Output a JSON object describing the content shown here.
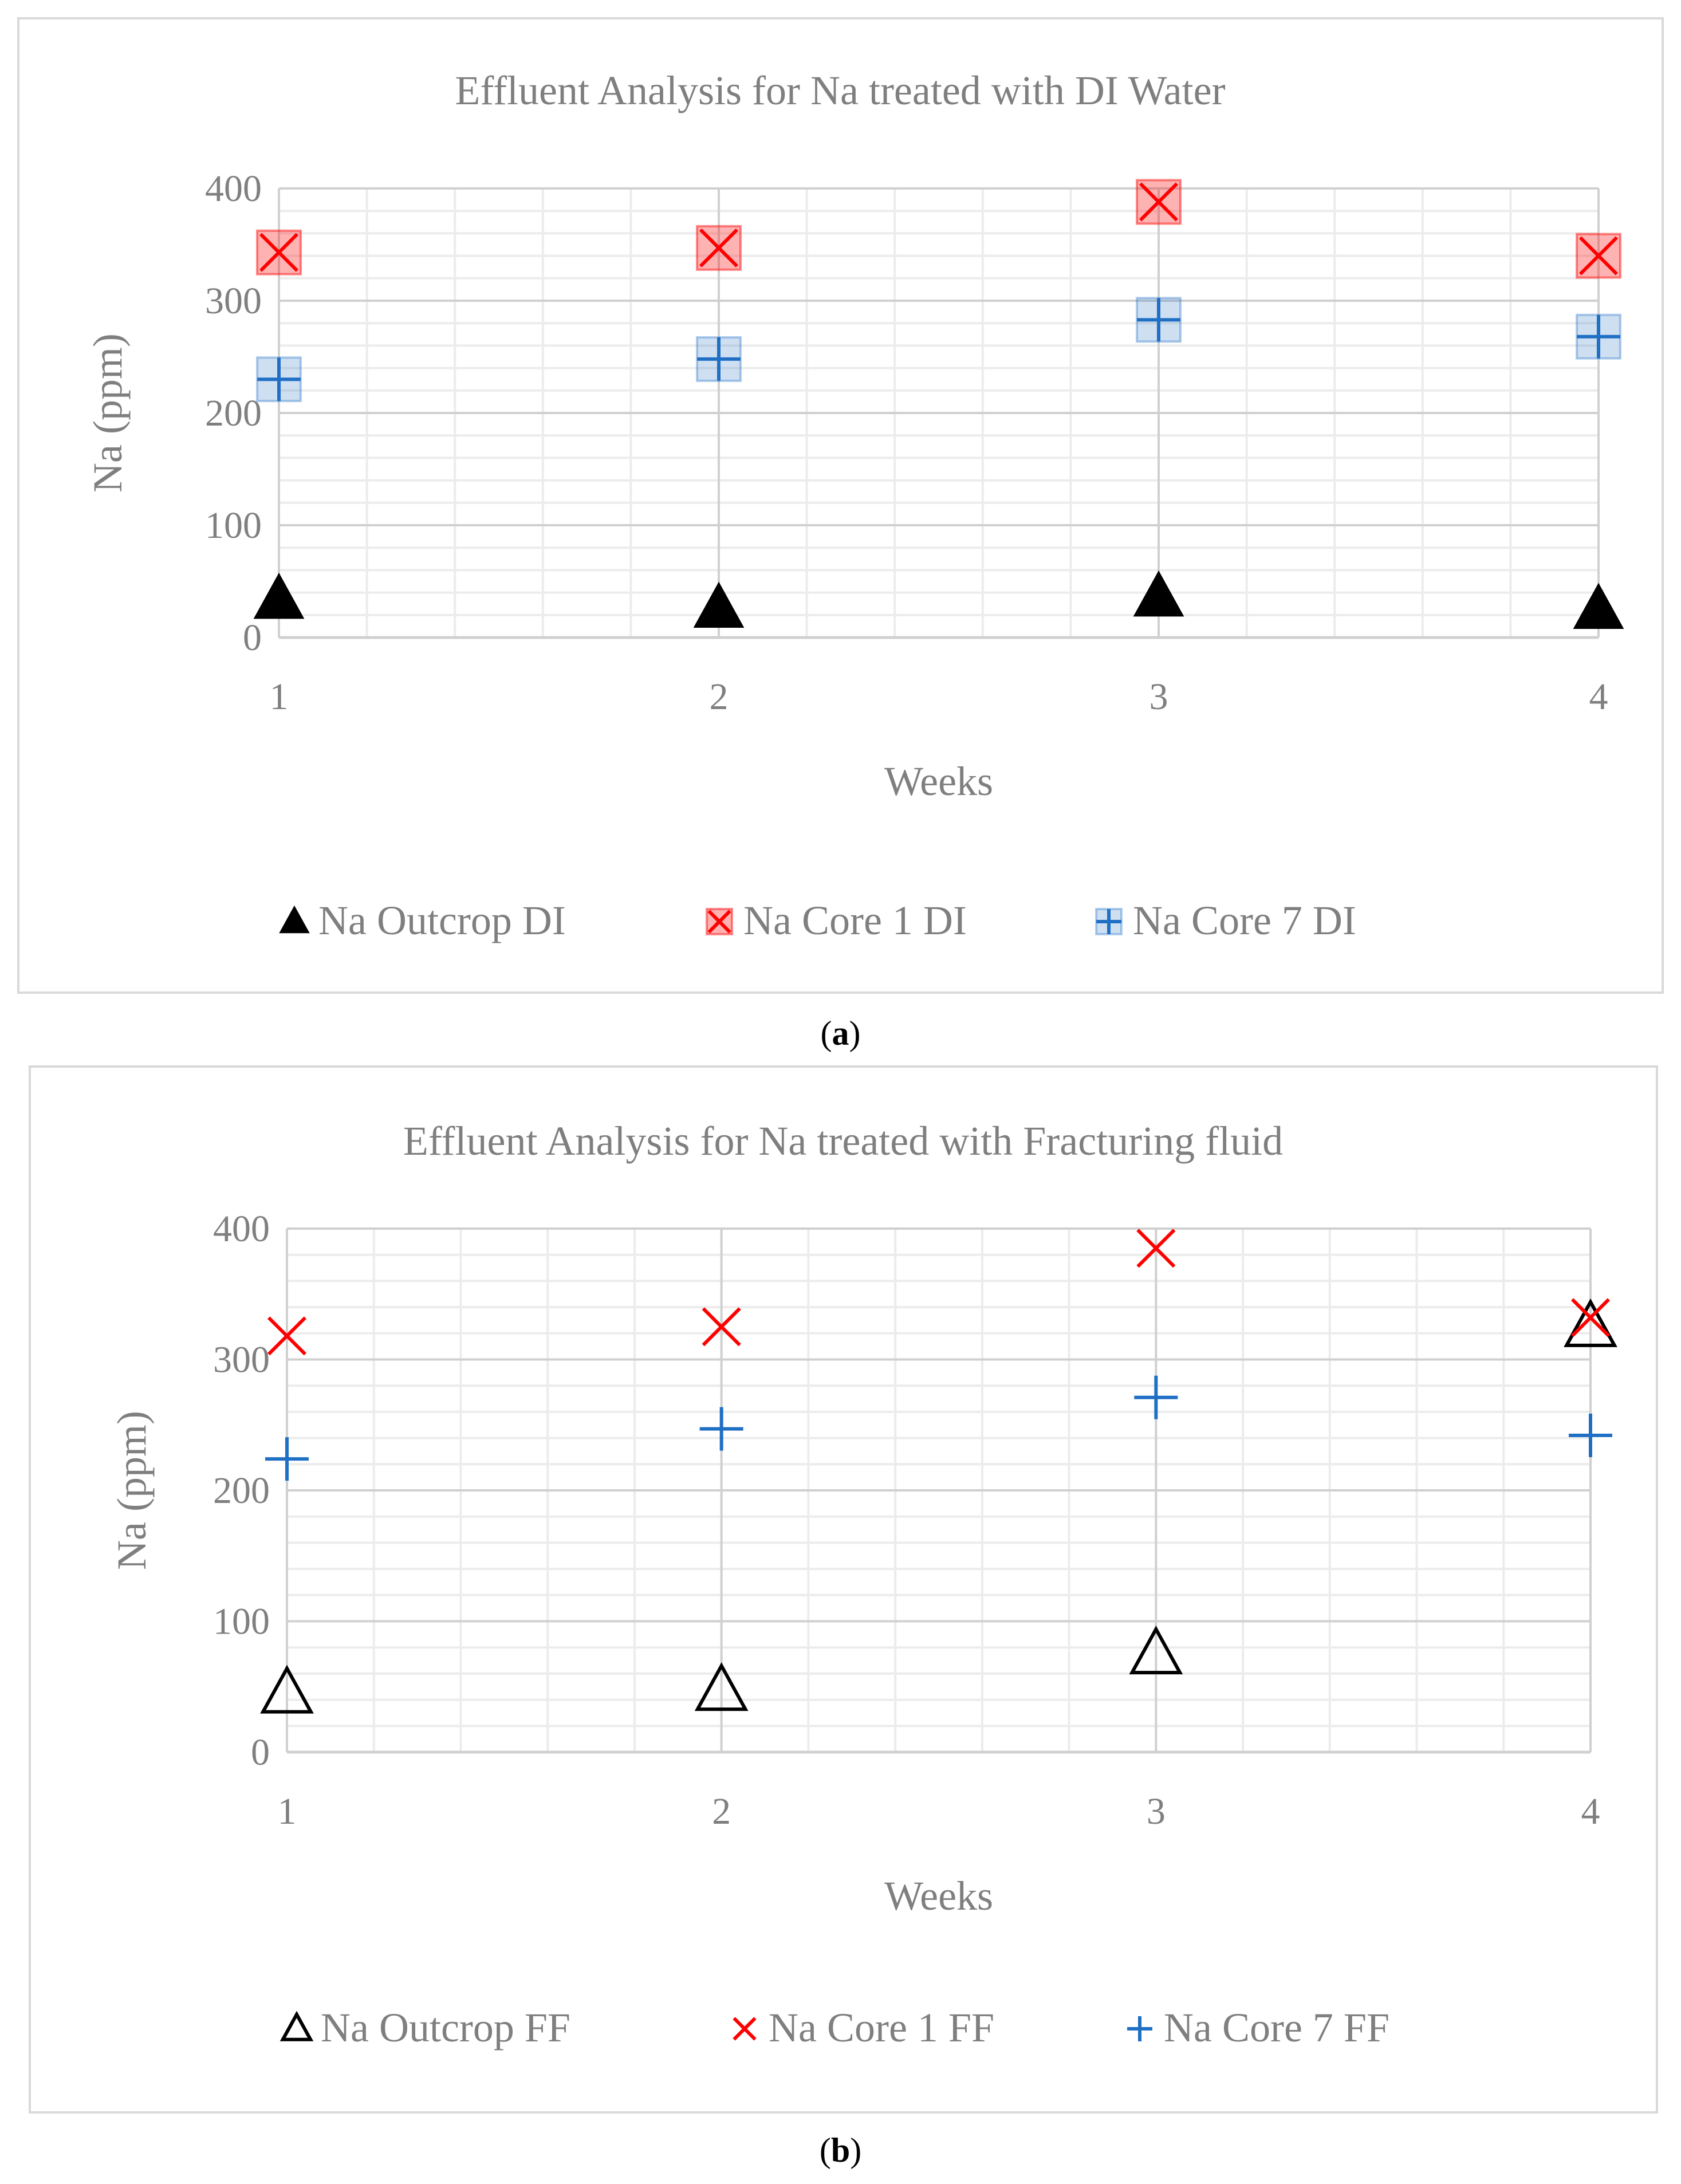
{
  "charts": [
    {
      "caption_letter": "a",
      "chart_data": {
        "type": "scatter",
        "title": "Effluent Analysis for Na treated with DI Water",
        "xlabel": "Weeks",
        "ylabel": "Na (ppm)",
        "x": [
          1,
          2,
          3,
          4
        ],
        "xlim": [
          1,
          4
        ],
        "ylim": [
          0,
          400
        ],
        "xticks": [
          "1",
          "2",
          "3",
          "4"
        ],
        "yticks": [
          "0",
          "100",
          "200",
          "300",
          "400"
        ],
        "grid": true,
        "legend_position": "bottom",
        "series": [
          {
            "name": "Na Outcrop DI",
            "marker": "triangle-filled",
            "color": "#000000",
            "values": [
              34,
              26,
              36,
              25
            ]
          },
          {
            "name": "Na Core 1 DI",
            "marker": "x-boxed",
            "color": "#ff0000",
            "values": [
              343,
              347,
              388,
              340
            ]
          },
          {
            "name": "Na Core 7 DI",
            "marker": "plus-boxed",
            "color": "#1f6fc5",
            "values": [
              230,
              248,
              283,
              268
            ]
          }
        ]
      }
    },
    {
      "caption_letter": "b",
      "chart_data": {
        "type": "scatter",
        "title": "Effluent Analysis for Na treated with Fracturing fluid",
        "xlabel": "Weeks",
        "ylabel": "Na (ppm)",
        "x": [
          1,
          2,
          3,
          4
        ],
        "xlim": [
          1,
          4
        ],
        "ylim": [
          0,
          400
        ],
        "xticks": [
          "1",
          "2",
          "3",
          "4"
        ],
        "yticks": [
          "0",
          "100",
          "200",
          "300",
          "400"
        ],
        "grid": true,
        "legend_position": "bottom",
        "series": [
          {
            "name": "Na Outcrop FF",
            "marker": "triangle-open",
            "color": "#000000",
            "values": [
              45,
              47,
              75,
              325
            ]
          },
          {
            "name": "Na Core 1 FF",
            "marker": "x",
            "color": "#ff0000",
            "values": [
              318,
              325,
              385,
              332
            ]
          },
          {
            "name": "Na Core 7 FF",
            "marker": "plus",
            "color": "#1f6fc5",
            "values": [
              224,
              247,
              271,
              242
            ]
          }
        ]
      }
    }
  ]
}
